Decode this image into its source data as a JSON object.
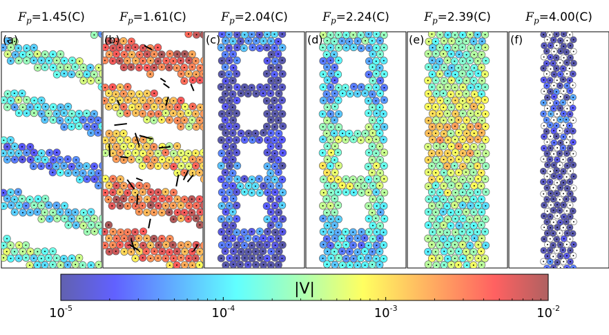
{
  "chart_data": {
    "type": "scatter",
    "colorbar": {
      "label": "|V|",
      "scale": "log",
      "range": [
        1e-05,
        0.01
      ],
      "ticks": [
        {
          "base": "10",
          "exp": "-5",
          "value": 1e-05
        },
        {
          "base": "10",
          "exp": "-4",
          "value": 0.0001
        },
        {
          "base": "10",
          "exp": "-3",
          "value": 0.001
        },
        {
          "base": "10",
          "exp": "-2",
          "value": 0.01
        }
      ],
      "colormap": "jet"
    },
    "panels": [
      {
        "label": "(a)",
        "fp_symbol": "F",
        "fp_sub": "p",
        "fp_value": "=1.45(C)",
        "pattern": "diagonal_stripes",
        "log_velocity_mean": -4.0
      },
      {
        "label": "(b)",
        "fp_symbol": "F",
        "fp_sub": "p",
        "fp_value": "=1.61(C)",
        "pattern": "disordered_clusters",
        "log_velocity_mean": -2.7
      },
      {
        "label": "(c)",
        "fp_symbol": "F",
        "fp_sub": "p",
        "fp_value": "=2.04(C)",
        "pattern": "channel_with_holes",
        "log_velocity_mean": -4.75
      },
      {
        "label": "(d)",
        "fp_symbol": "F",
        "fp_sub": "p",
        "fp_value": "=2.24(C)",
        "pattern": "channel_with_holes",
        "log_velocity_mean": -3.8
      },
      {
        "label": "(e)",
        "fp_symbol": "F",
        "fp_sub": "p",
        "fp_value": "=2.39(C)",
        "pattern": "dense_channel",
        "log_velocity_mean": -3.4
      },
      {
        "label": "(f)",
        "fp_symbol": "F",
        "fp_sub": "p",
        "fp_value": "=4.00(C)",
        "pattern": "narrow_channel",
        "log_velocity_mean": -5.0
      }
    ]
  }
}
